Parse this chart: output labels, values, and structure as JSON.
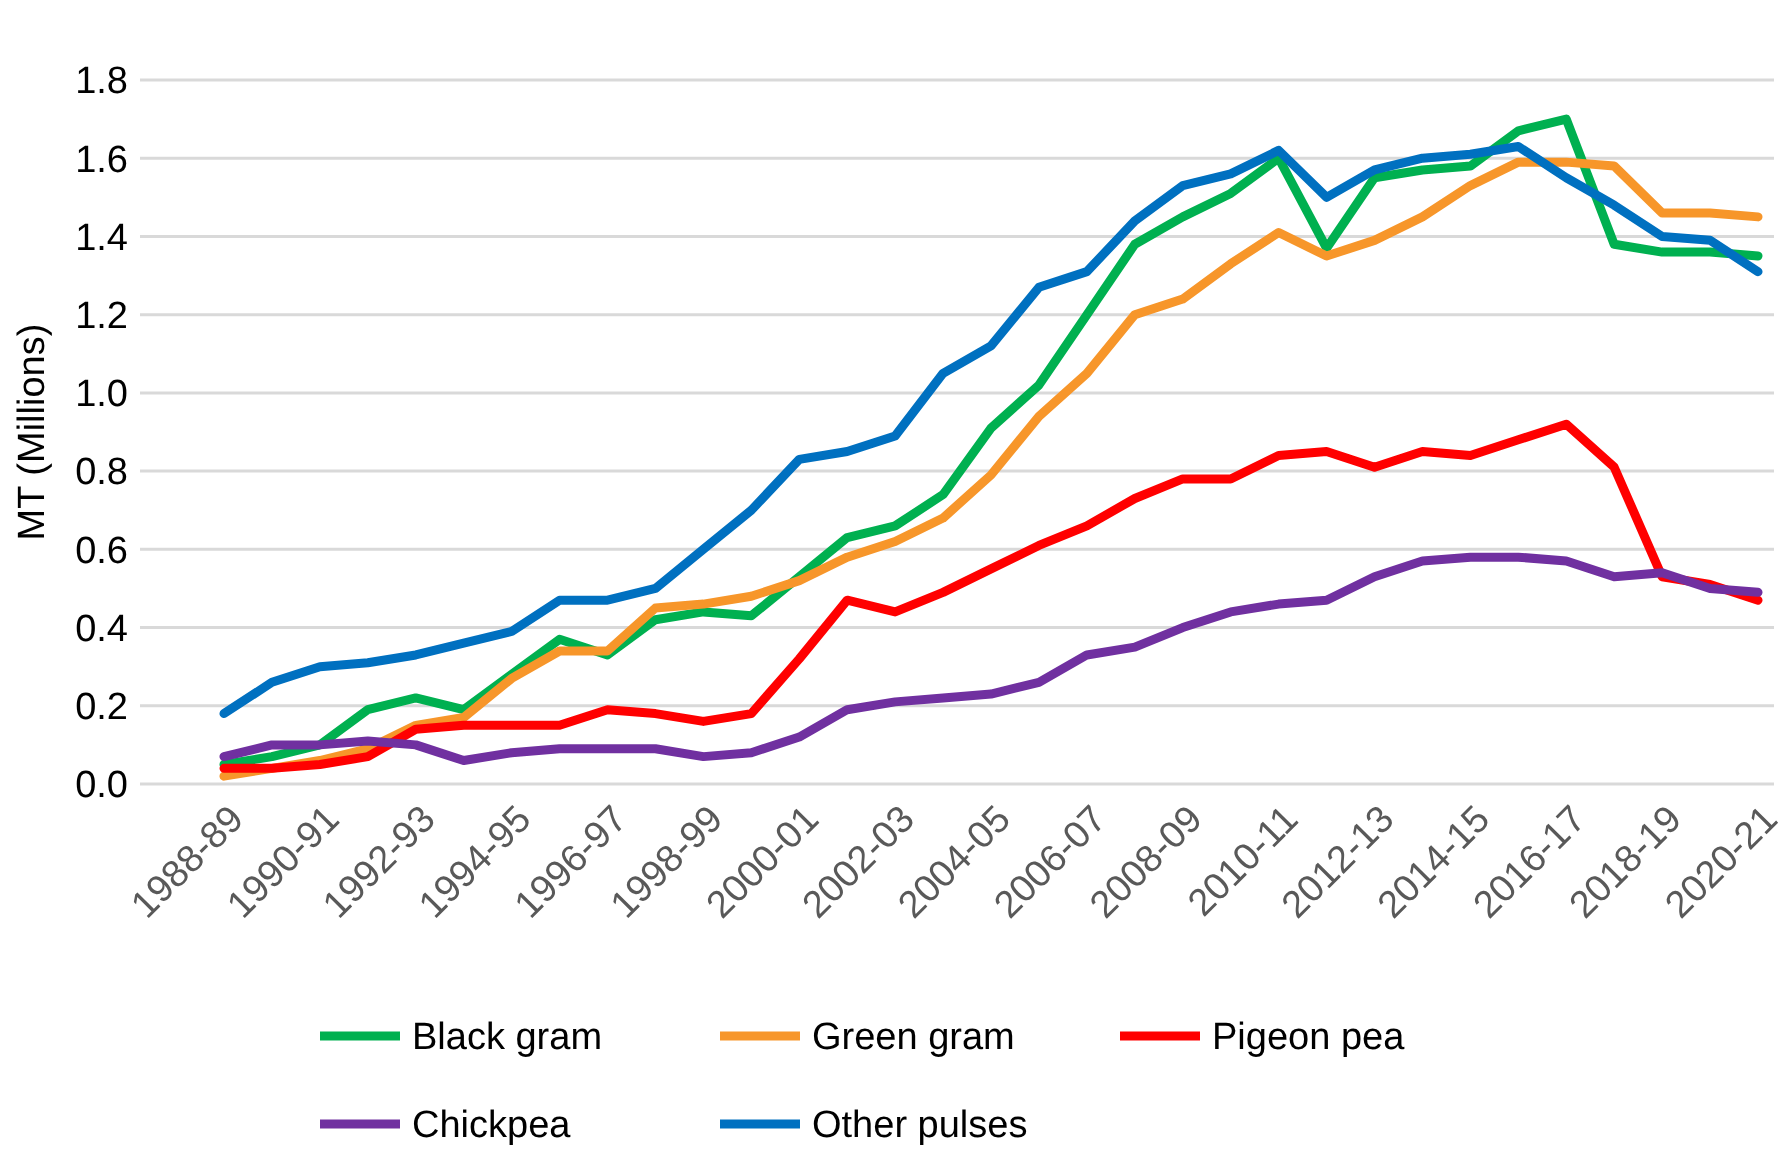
{
  "chart_data": {
    "type": "line",
    "ylabel": "MT (Millions)",
    "categories": [
      "1988-89",
      null,
      "1990-91",
      null,
      "1992-93",
      null,
      "1994-95",
      null,
      "1996-97",
      null,
      "1998-99",
      null,
      "2000-01",
      null,
      "2002-03",
      null,
      "2004-05",
      null,
      "2006-07",
      null,
      "2008-09",
      null,
      "2010-11",
      null,
      "2012-13",
      null,
      "2014-15",
      null,
      "2016-17",
      null,
      "2018-19",
      null,
      "2020-21"
    ],
    "series": [
      {
        "name": "Black gram",
        "color": "#00b050",
        "values": [
          0.05,
          0.07,
          0.1,
          0.19,
          0.22,
          0.19,
          0.28,
          0.37,
          0.33,
          0.42,
          0.44,
          0.43,
          0.53,
          0.63,
          0.66,
          0.74,
          0.91,
          1.02,
          1.2,
          1.38,
          1.45,
          1.51,
          1.6,
          1.37,
          1.55,
          1.57,
          1.58,
          1.67,
          1.7,
          1.38,
          1.36,
          1.36,
          1.35
        ]
      },
      {
        "name": "Green gram",
        "color": "#f7962a",
        "values": [
          0.02,
          0.04,
          0.06,
          0.09,
          0.15,
          0.17,
          0.27,
          0.34,
          0.34,
          0.45,
          0.46,
          0.48,
          0.52,
          0.58,
          0.62,
          0.68,
          0.79,
          0.94,
          1.05,
          1.2,
          1.24,
          1.33,
          1.41,
          1.35,
          1.39,
          1.45,
          1.53,
          1.59,
          1.59,
          1.58,
          1.46,
          1.46,
          1.45
        ]
      },
      {
        "name": "Pigeon pea",
        "color": "#ff0000",
        "values": [
          0.04,
          0.04,
          0.05,
          0.07,
          0.14,
          0.15,
          0.15,
          0.15,
          0.19,
          0.18,
          0.16,
          0.18,
          0.32,
          0.47,
          0.44,
          0.49,
          0.55,
          0.61,
          0.66,
          0.73,
          0.78,
          0.78,
          0.84,
          0.85,
          0.81,
          0.85,
          0.84,
          0.88,
          0.92,
          0.81,
          0.53,
          0.51,
          0.47
        ]
      },
      {
        "name": "Chickpea",
        "color": "#7030a0",
        "values": [
          0.07,
          0.1,
          0.1,
          0.11,
          0.1,
          0.06,
          0.08,
          0.09,
          0.09,
          0.09,
          0.07,
          0.08,
          0.12,
          0.19,
          0.21,
          0.22,
          0.23,
          0.26,
          0.33,
          0.35,
          0.4,
          0.44,
          0.46,
          0.47,
          0.53,
          0.57,
          0.58,
          0.58,
          0.57,
          0.53,
          0.54,
          0.5,
          0.49
        ]
      },
      {
        "name": "Other pulses",
        "color": "#0070c0",
        "values": [
          0.18,
          0.26,
          0.3,
          0.31,
          0.33,
          0.36,
          0.39,
          0.47,
          0.47,
          0.5,
          0.6,
          0.7,
          0.83,
          0.85,
          0.89,
          1.05,
          1.12,
          1.27,
          1.31,
          1.44,
          1.53,
          1.56,
          1.62,
          1.5,
          1.57,
          1.6,
          1.61,
          1.63,
          1.55,
          1.48,
          1.4,
          1.39,
          1.31
        ]
      }
    ],
    "ylim": [
      0,
      1.8
    ],
    "yticks": [
      {
        "value": 0,
        "label": "0.0"
      },
      {
        "value": 0.2,
        "label": "0.2"
      },
      {
        "value": 0.4,
        "label": "0.4"
      },
      {
        "value": 0.6,
        "label": "0.6"
      },
      {
        "value": 0.8,
        "label": "0.8"
      },
      {
        "value": 1,
        "label": "1.0"
      },
      {
        "value": 1.2,
        "label": "1.2"
      },
      {
        "value": 1.4,
        "label": "1.4"
      },
      {
        "value": 1.6,
        "label": "1.6"
      },
      {
        "value": 1.8,
        "label": "1.8"
      }
    ],
    "grid": "y",
    "legend": "bottom",
    "marker": "none",
    "line_style": "solid"
  }
}
